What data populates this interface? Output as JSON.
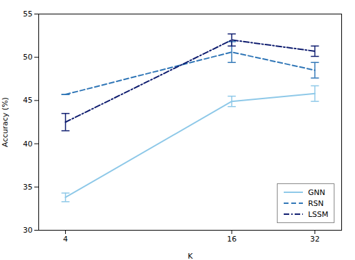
{
  "chart_data": {
    "type": "line",
    "x": [
      4,
      16,
      32
    ],
    "xlabel": "K",
    "ylabel": "Accuracy (%)",
    "xlim": [
      3.2,
      40
    ],
    "xticks": [
      4,
      16,
      32
    ],
    "ylim": [
      30,
      55
    ],
    "yticks": [
      30,
      35,
      40,
      45,
      50,
      55
    ],
    "log": "x",
    "grid": false,
    "legend": "lower right",
    "series": [
      {
        "name": "GNN",
        "color": "#8DC8E8",
        "line_style": "solid",
        "values": [
          33.8,
          44.9,
          45.8
        ],
        "yerr": [
          0.5,
          0.6,
          0.9
        ]
      },
      {
        "name": "RSN",
        "color": "#2E75B6",
        "line_style": "dashed",
        "values": [
          45.7,
          50.6,
          48.5
        ],
        "yerr": [
          0.0,
          1.2,
          0.9
        ]
      },
      {
        "name": "LSSM",
        "color": "#0D1B6E",
        "line_style": "dashdot",
        "values": [
          42.5,
          52.0,
          50.7
        ],
        "yerr": [
          1.0,
          0.7,
          0.6
        ]
      }
    ]
  }
}
